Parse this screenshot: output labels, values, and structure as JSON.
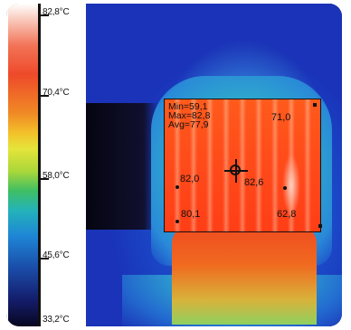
{
  "scale": {
    "ticks": [
      {
        "label": "82,8°C"
      },
      {
        "label": "70,4°C"
      },
      {
        "label": "58,0°C"
      },
      {
        "label": "45,6°C"
      },
      {
        "label": "33,2°C"
      }
    ]
  },
  "roi": {
    "min": "Min=59,1",
    "max": "Max=82,8",
    "avg": "Avg=77,9",
    "points": {
      "top_right": "71,0",
      "mid_left": "82,0",
      "center": "82,6",
      "bottom_left": "80,1",
      "bottom_right": "62,8"
    }
  },
  "colors": {
    "scale_hot": "#ee4a2a",
    "scale_cold": "#07071f",
    "roi_fill": "#ff4a1a",
    "background_blue": "#1b4fcc"
  },
  "icons": {
    "crosshair": "crosshair-icon"
  }
}
